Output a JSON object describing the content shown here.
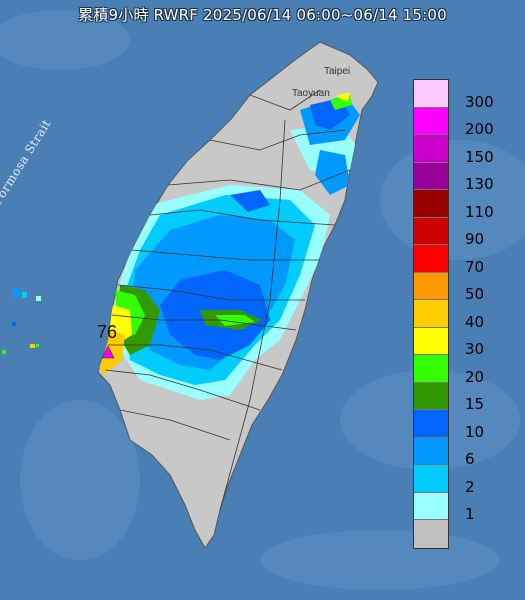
{
  "title": "累積9小時 RWRF 2025/06/14 06:00~06/14 15:00",
  "legend": [
    {
      "label": "300",
      "color": "#ffc8ff"
    },
    {
      "label": "200",
      "color": "#ff00ff"
    },
    {
      "label": "150",
      "color": "#cc00cc"
    },
    {
      "label": "130",
      "color": "#990099"
    },
    {
      "label": "110",
      "color": "#990000"
    },
    {
      "label": "90",
      "color": "#cc0000"
    },
    {
      "label": "70",
      "color": "#ff0000"
    },
    {
      "label": "50",
      "color": "#ff9900"
    },
    {
      "label": "40",
      "color": "#ffcc00"
    },
    {
      "label": "30",
      "color": "#ffff00"
    },
    {
      "label": "20",
      "color": "#33ff00"
    },
    {
      "label": "15",
      "color": "#339900"
    },
    {
      "label": "10",
      "color": "#0066ff"
    },
    {
      "label": "6",
      "color": "#0099ff"
    },
    {
      "label": "2",
      "color": "#00ccff"
    },
    {
      "label": "1",
      "color": "#99ffff"
    },
    {
      "label": "",
      "color": "#c0c0c0"
    }
  ],
  "places": {
    "taipei": "Taipei",
    "taoyuan": "Taoyuan"
  },
  "strait_label": "Formosa Strait",
  "max_value": "76",
  "colors": {
    "sea": "#4a7fb6",
    "land": "#c8c8c8",
    "boundary": "#333333"
  }
}
